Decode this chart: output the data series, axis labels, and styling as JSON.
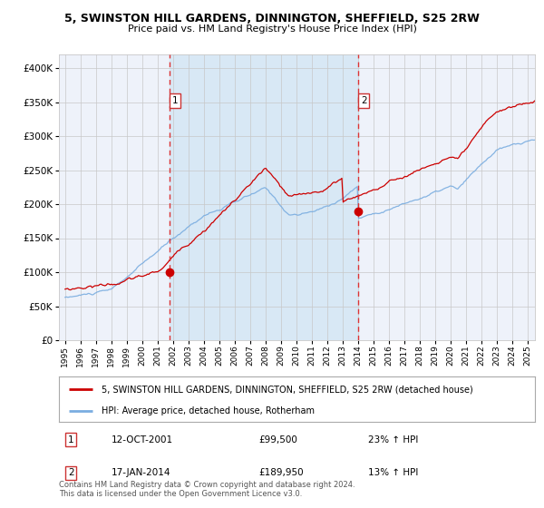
{
  "title": "5, SWINSTON HILL GARDENS, DINNINGTON, SHEFFIELD, S25 2RW",
  "subtitle": "Price paid vs. HM Land Registry's House Price Index (HPI)",
  "legend_line1": "5, SWINSTON HILL GARDENS, DINNINGTON, SHEFFIELD, S25 2RW (detached house)",
  "legend_line2": "HPI: Average price, detached house, Rotherham",
  "annotation1_date": "12-OCT-2001",
  "annotation1_price": "£99,500",
  "annotation1_hpi": "23% ↑ HPI",
  "annotation2_date": "17-JAN-2014",
  "annotation2_price": "£189,950",
  "annotation2_hpi": "13% ↑ HPI",
  "footer": "Contains HM Land Registry data © Crown copyright and database right 2024.\nThis data is licensed under the Open Government Licence v3.0.",
  "hpi_color": "#7aade0",
  "price_color": "#cc0000",
  "dot_color": "#cc0000",
  "background_color": "#ffffff",
  "plot_bg_color": "#eef2fa",
  "shaded_region_color": "#d8e8f5",
  "grid_color": "#c8c8c8",
  "vline_color": "#dd3333",
  "ylim": [
    0,
    420000
  ],
  "yticks": [
    0,
    50000,
    100000,
    150000,
    200000,
    250000,
    300000,
    350000,
    400000
  ],
  "sale1_year": 2001.79,
  "sale1_value": 99500,
  "sale2_year": 2014.04,
  "sale2_value": 189950,
  "xstart": 1994.6,
  "xend": 2025.5
}
